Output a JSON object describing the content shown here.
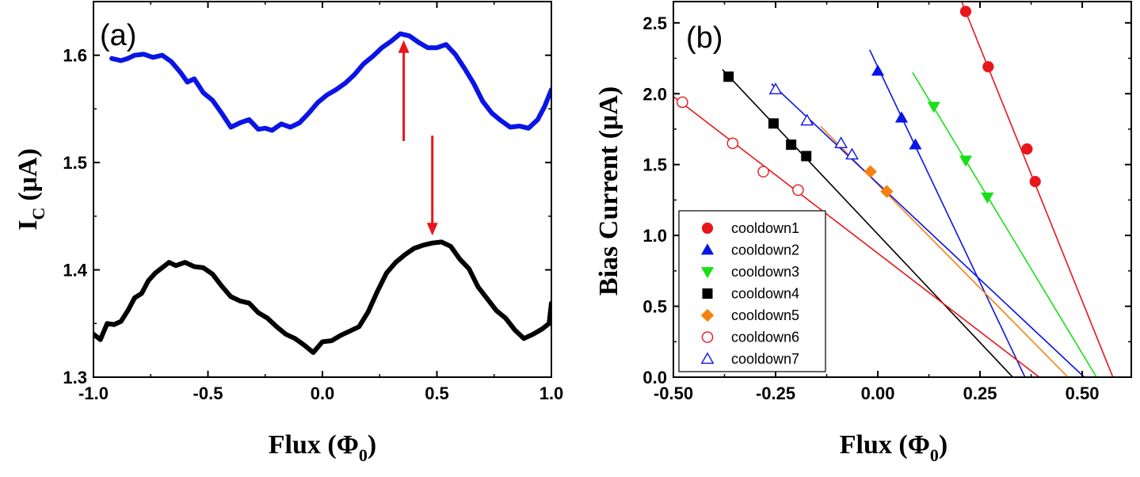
{
  "chart_data": [
    {
      "type": "line",
      "panel_label": "(a)",
      "xlabel": "Flux (Φ",
      "xlabel_sub": "0",
      "ylabel": "I",
      "ylabel_sub": "C",
      "ylabel_unit": "(μA)",
      "xlim": [
        -1.0,
        1.0
      ],
      "ylim": [
        1.3,
        1.65
      ],
      "xticks": [
        -1.0,
        -0.5,
        0.0,
        0.5,
        1.0
      ],
      "xtick_labels": [
        "-1.0",
        "-0.5",
        "0.0",
        "0.5",
        "1.0"
      ],
      "yticks": [
        1.3,
        1.4,
        1.5,
        1.6
      ],
      "ytick_labels": [
        "1.3",
        "1.4",
        "1.5",
        "1.6"
      ],
      "series": [
        {
          "name": "upper",
          "color": "#0a14e6",
          "x": [
            -0.92,
            -0.88,
            -0.85,
            -0.82,
            -0.78,
            -0.74,
            -0.7,
            -0.66,
            -0.62,
            -0.59,
            -0.56,
            -0.52,
            -0.48,
            -0.44,
            -0.4,
            -0.36,
            -0.32,
            -0.28,
            -0.25,
            -0.22,
            -0.18,
            -0.14,
            -0.1,
            -0.06,
            -0.02,
            0.02,
            0.06,
            0.1,
            0.14,
            0.18,
            0.22,
            0.26,
            0.3,
            0.34,
            0.38,
            0.42,
            0.46,
            0.5,
            0.54,
            0.58,
            0.62,
            0.66,
            0.7,
            0.74,
            0.78,
            0.82,
            0.86,
            0.9,
            0.94,
            0.97,
            1.0
          ],
          "y": [
            1.597,
            1.595,
            1.597,
            1.6,
            1.601,
            1.598,
            1.6,
            1.594,
            1.584,
            1.575,
            1.578,
            1.565,
            1.558,
            1.546,
            1.533,
            1.537,
            1.54,
            1.531,
            1.532,
            1.53,
            1.536,
            1.533,
            1.537,
            1.546,
            1.556,
            1.563,
            1.568,
            1.574,
            1.582,
            1.592,
            1.599,
            1.607,
            1.613,
            1.62,
            1.618,
            1.612,
            1.607,
            1.607,
            1.61,
            1.601,
            1.588,
            1.574,
            1.557,
            1.546,
            1.539,
            1.533,
            1.534,
            1.532,
            1.54,
            1.552,
            1.568
          ]
        },
        {
          "name": "lower",
          "color": "#000000",
          "x": [
            -1.0,
            -0.97,
            -0.94,
            -0.91,
            -0.88,
            -0.85,
            -0.82,
            -0.79,
            -0.76,
            -0.73,
            -0.7,
            -0.67,
            -0.64,
            -0.6,
            -0.56,
            -0.52,
            -0.48,
            -0.44,
            -0.4,
            -0.36,
            -0.32,
            -0.28,
            -0.24,
            -0.2,
            -0.16,
            -0.12,
            -0.08,
            -0.04,
            0.0,
            0.04,
            0.08,
            0.12,
            0.16,
            0.2,
            0.24,
            0.28,
            0.32,
            0.36,
            0.4,
            0.44,
            0.48,
            0.52,
            0.56,
            0.6,
            0.64,
            0.68,
            0.72,
            0.76,
            0.8,
            0.84,
            0.88,
            0.92,
            0.96,
            0.99,
            1.0
          ],
          "y": [
            1.34,
            1.335,
            1.35,
            1.349,
            1.352,
            1.362,
            1.374,
            1.378,
            1.39,
            1.397,
            1.402,
            1.407,
            1.404,
            1.407,
            1.403,
            1.402,
            1.396,
            1.385,
            1.375,
            1.371,
            1.369,
            1.36,
            1.355,
            1.347,
            1.34,
            1.336,
            1.33,
            1.323,
            1.333,
            1.334,
            1.339,
            1.343,
            1.347,
            1.361,
            1.38,
            1.397,
            1.407,
            1.414,
            1.42,
            1.423,
            1.425,
            1.426,
            1.422,
            1.41,
            1.401,
            1.384,
            1.373,
            1.362,
            1.355,
            1.344,
            1.336,
            1.34,
            1.345,
            1.35,
            1.369
          ]
        }
      ],
      "annotations": [
        {
          "type": "arrow",
          "color": "#e8161b",
          "direction": "up",
          "x": 0.355,
          "from_y": 1.52,
          "to_y": 1.614
        },
        {
          "type": "arrow",
          "color": "#e8161b",
          "direction": "down",
          "x": 0.48,
          "from_y": 1.525,
          "to_y": 1.432
        }
      ]
    },
    {
      "type": "scatter",
      "panel_label": "(b)",
      "xlabel": "Flux (Φ",
      "xlabel_sub": "0",
      "ylabel": "Bias Current (μA)",
      "xlim": [
        -0.5,
        0.62
      ],
      "ylim": [
        0.0,
        2.65
      ],
      "xticks": [
        -0.5,
        -0.25,
        0.0,
        0.25,
        0.5
      ],
      "xtick_labels": [
        "-0.50",
        "-0.25",
        "0.00",
        "0.25",
        "0.50"
      ],
      "yticks": [
        0.0,
        0.5,
        1.0,
        1.5,
        2.0,
        2.5
      ],
      "ytick_labels": [
        "0.0",
        "0.5",
        "1.0",
        "1.5",
        "2.0",
        "2.5"
      ],
      "legend_position": "bottom-left",
      "series": [
        {
          "name": "cooldown1",
          "marker": "circle",
          "filled": true,
          "color": "#e8161b",
          "x": [
            0.215,
            0.27,
            0.365,
            0.385
          ],
          "y": [
            2.58,
            2.19,
            1.61,
            1.38
          ],
          "fit": {
            "x": [
              0.205,
              0.575
            ],
            "y": [
              2.65,
              0.0
            ]
          }
        },
        {
          "name": "cooldown2",
          "marker": "triangle-up",
          "filled": true,
          "color": "#0a14e6",
          "x": [
            0.0,
            0.058,
            0.092
          ],
          "y": [
            2.16,
            1.83,
            1.64
          ],
          "fit": {
            "x": [
              -0.02,
              0.36
            ],
            "y": [
              2.31,
              0.0
            ]
          }
        },
        {
          "name": "cooldown3",
          "marker": "triangle-down",
          "filled": true,
          "color": "#16e016",
          "x": [
            0.137,
            0.215,
            0.268
          ],
          "y": [
            1.91,
            1.53,
            1.27
          ],
          "fit": {
            "x": [
              0.085,
              0.535
            ],
            "y": [
              2.15,
              0.0
            ]
          }
        },
        {
          "name": "cooldown4",
          "marker": "square",
          "filled": true,
          "color": "#000000",
          "x": [
            -0.365,
            -0.255,
            -0.212,
            -0.175
          ],
          "y": [
            2.12,
            1.79,
            1.64,
            1.56
          ],
          "fit": {
            "x": [
              -0.38,
              0.33
            ],
            "y": [
              2.17,
              0.0
            ]
          }
        },
        {
          "name": "cooldown5",
          "marker": "diamond",
          "filled": true,
          "color": "#f5820f",
          "x": [
            -0.018,
            0.022
          ],
          "y": [
            1.45,
            1.31
          ],
          "fit": {
            "x": [
              -0.14,
              0.465
            ],
            "y": [
              1.77,
              0.0
            ]
          }
        },
        {
          "name": "cooldown6",
          "marker": "circle",
          "filled": false,
          "color": "#e8161b",
          "x": [
            -0.478,
            -0.355,
            -0.28,
            -0.195
          ],
          "y": [
            1.94,
            1.65,
            1.45,
            1.32
          ],
          "fit": {
            "x": [
              -0.5,
              0.395
            ],
            "y": [
              1.98,
              0.0
            ]
          }
        },
        {
          "name": "cooldown7",
          "marker": "triangle-up",
          "filled": false,
          "color": "#0a14e6",
          "x": [
            -0.25,
            -0.173,
            -0.09,
            -0.063
          ],
          "y": [
            2.03,
            1.81,
            1.65,
            1.57
          ],
          "fit": {
            "x": [
              -0.26,
              0.505
            ],
            "y": [
              2.07,
              0.0
            ]
          }
        }
      ]
    }
  ]
}
